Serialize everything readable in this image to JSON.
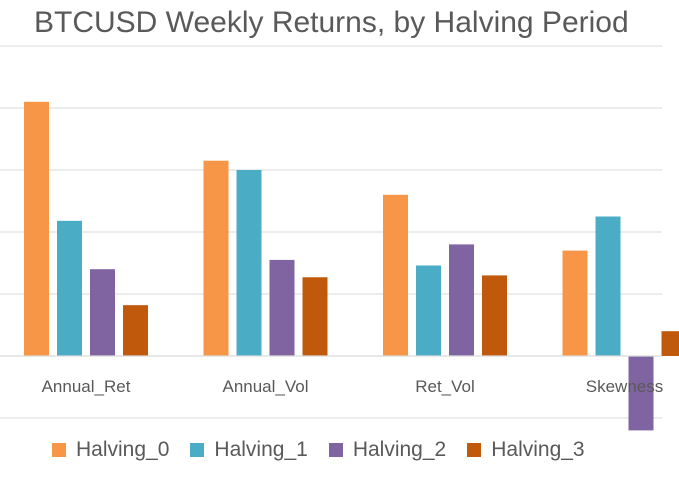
{
  "chart_data": {
    "type": "bar",
    "title": "BTCUSD Weekly Returns, by Halving Period",
    "xlabel": "",
    "ylabel": "",
    "grid": true,
    "legend_position": "bottom",
    "categories": [
      "Annual_Ret",
      "Annual_Vol",
      "Ret_Vol",
      "Skewness"
    ],
    "series": [
      {
        "name": "Halving_0",
        "color": "#F79646",
        "values": [
          4.1,
          3.15,
          2.6,
          1.7
        ]
      },
      {
        "name": "Halving_1",
        "color": "#4BACC6",
        "values": [
          2.18,
          3.0,
          1.46,
          2.25
        ]
      },
      {
        "name": "Halving_2",
        "color": "#8064A2",
        "values": [
          1.4,
          1.55,
          1.8,
          -1.2
        ]
      },
      {
        "name": "Halving_3",
        "color": "#C0590C",
        "values": [
          0.82,
          1.27,
          1.3,
          0.4
        ]
      }
    ],
    "ylim": [
      -1.2,
      5
    ]
  }
}
